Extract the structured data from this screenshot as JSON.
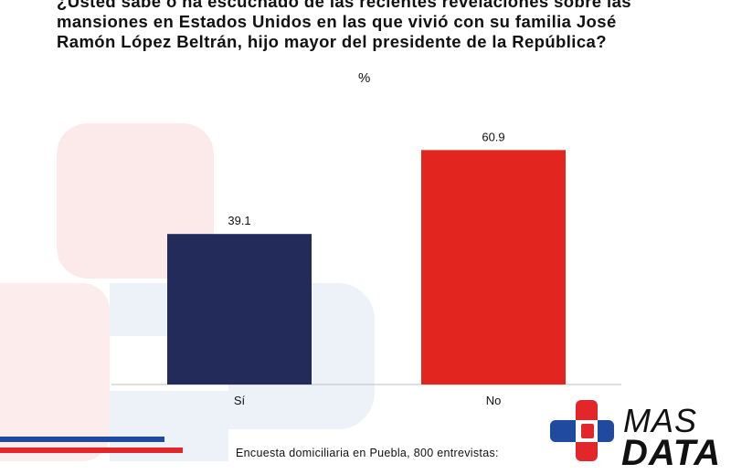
{
  "title": "¿Usted sabe o ha escuchado de las recientes revelaciones sobre las\nmansiones en Estados Unidos en las que vivió con su familia José\nRamón López Beltrán, hijo mayor del presidente de la República?",
  "unit_label": "%",
  "footer": "Encuesta domiciliaria en Puebla, 800 entrevistas:",
  "logo": {
    "line1": "MAS",
    "line2": "DATA"
  },
  "colors": {
    "si_bar": "#232b5a",
    "no_bar": "#e2261f",
    "axis": "#bfbfbf",
    "accent_blue": "#1f4aa0",
    "accent_red": "#e3262a"
  },
  "chart_data": {
    "type": "bar",
    "title": "¿Usted sabe o ha escuchado de las recientes revelaciones sobre las mansiones en Estados Unidos en las que vivió con su familia José Ramón López Beltrán, hijo mayor del presidente de la República?",
    "ylabel": "%",
    "categories": [
      "Sí",
      "No"
    ],
    "values": [
      39.1,
      60.9
    ],
    "data_labels": [
      "39.1",
      "60.9"
    ],
    "ylim": [
      0,
      65
    ],
    "grid": false,
    "legend": "none"
  }
}
